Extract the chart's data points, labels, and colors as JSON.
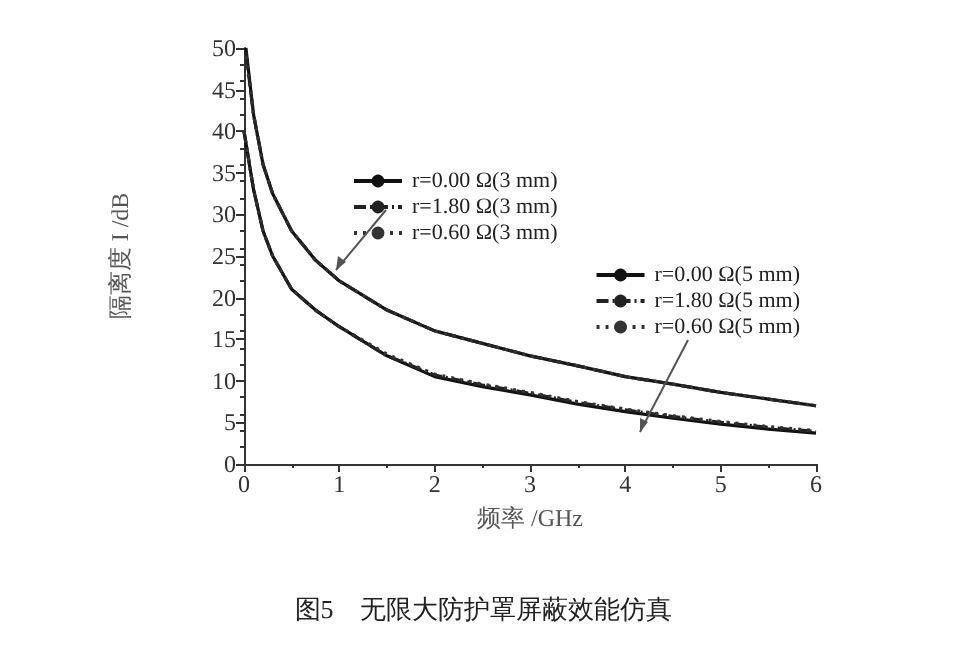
{
  "chart_data": {
    "type": "line",
    "xlabel": "频率 /GHz",
    "ylabel": "隔离度 I /dB",
    "annotations": [
      "图5　无限大防护罩屏蔽效能仿真"
    ],
    "xlim": [
      0,
      6
    ],
    "xticks": [
      0,
      1,
      2,
      3,
      4,
      5,
      6
    ],
    "ylim": [
      0,
      50
    ],
    "yticks": [
      0,
      5,
      10,
      15,
      20,
      25,
      30,
      35,
      40,
      45,
      50
    ],
    "grid": false,
    "legend": "top right",
    "marker": "none",
    "series": [
      {
        "name": "r=0.00 Ω(3 mm)",
        "color": "#111111",
        "line_style": "solid",
        "x": [
          0.02,
          0.1,
          0.2,
          0.3,
          0.5,
          0.75,
          1,
          1.5,
          2,
          2.5,
          3,
          3.5,
          4,
          4.5,
          5,
          5.5,
          6
        ],
        "values": [
          50,
          42,
          36,
          32.5,
          28,
          24.5,
          22,
          18.5,
          16,
          14.5,
          13,
          11.8,
          10.5,
          9.6,
          8.6,
          7.8,
          7
        ]
      },
      {
        "name": "r=1.80 Ω(3 mm)",
        "color": "#222222",
        "line_style": "dashed",
        "x": [
          0.02,
          0.1,
          0.2,
          0.3,
          0.5,
          0.75,
          1,
          1.5,
          2,
          2.5,
          3,
          3.5,
          4,
          4.5,
          5,
          5.5,
          6
        ],
        "values": [
          49.5,
          42,
          36,
          32.5,
          28,
          24.5,
          22,
          18.5,
          16,
          14.5,
          13,
          11.8,
          10.5,
          9.6,
          8.6,
          7.8,
          7
        ]
      },
      {
        "name": "r=0.60 Ω(3 mm)",
        "color": "#333333",
        "line_style": "dotted",
        "x": [
          0.02,
          0.1,
          0.2,
          0.3,
          0.5,
          0.75,
          1,
          1.5,
          2,
          2.5,
          3,
          3.5,
          4,
          4.5,
          5,
          5.5,
          6
        ],
        "values": [
          49,
          42,
          36,
          32.5,
          28,
          24.5,
          22,
          18.5,
          16,
          14.5,
          13,
          11.8,
          10.5,
          9.6,
          8.6,
          7.8,
          7
        ]
      },
      {
        "name": "r=0.00 Ω(5 mm)",
        "color": "#111111",
        "line_style": "solid",
        "x": [
          0,
          0.1,
          0.2,
          0.3,
          0.5,
          0.75,
          1,
          1.5,
          2,
          2.5,
          3,
          3.5,
          4,
          4.5,
          5,
          5.5,
          6
        ],
        "values": [
          40,
          33,
          28,
          25,
          21,
          18.5,
          16.5,
          13,
          10.5,
          9.3,
          8.3,
          7.2,
          6.3,
          5.5,
          4.8,
          4.2,
          3.7
        ]
      },
      {
        "name": "r=1.80 Ω(5 mm)",
        "color": "#222222",
        "line_style": "dashed",
        "x": [
          0,
          0.1,
          0.2,
          0.3,
          0.5,
          0.75,
          1,
          1.5,
          2,
          2.5,
          3,
          3.5,
          4,
          4.5,
          5,
          5.5,
          6
        ],
        "values": [
          40,
          33,
          28,
          25,
          21,
          18.5,
          16.5,
          13,
          10.7,
          9.5,
          8.5,
          7.4,
          6.5,
          5.7,
          5,
          4.4,
          3.9
        ]
      },
      {
        "name": "r=0.60 Ω(5 mm)",
        "color": "#333333",
        "line_style": "dotted",
        "x": [
          0,
          0.1,
          0.2,
          0.3,
          0.5,
          0.75,
          1,
          1.5,
          2,
          2.5,
          3,
          3.5,
          4,
          4.5,
          5,
          5.5,
          6
        ],
        "values": [
          40,
          33,
          28,
          25,
          21,
          18.5,
          16.5,
          13.2,
          10.8,
          9.6,
          8.6,
          7.5,
          6.6,
          5.8,
          5.1,
          4.5,
          4
        ]
      }
    ]
  }
}
